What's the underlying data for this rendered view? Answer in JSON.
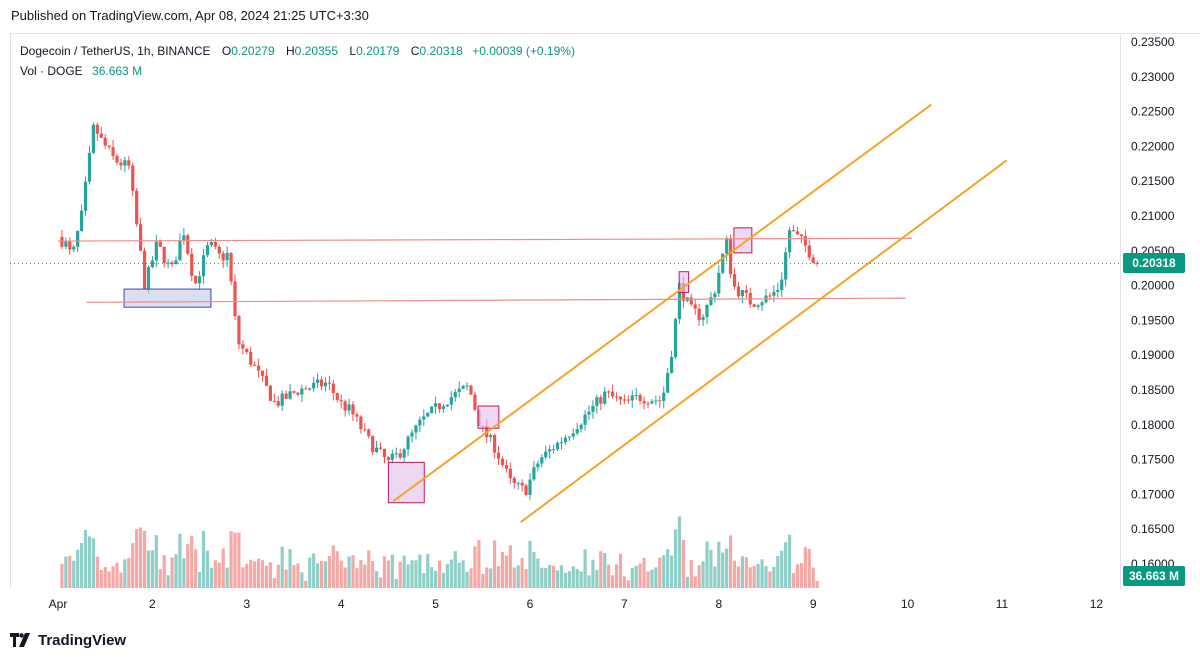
{
  "header": {
    "published": "Published on TradingView.com, Apr 08, 2024 21:25 UTC+3:30"
  },
  "legend": {
    "symbol": "Dogecoin / TetherUS, 1h, BINANCE",
    "open_label": "O",
    "open": "0.20279",
    "high_label": "H",
    "high": "0.20355",
    "low_label": "L",
    "low": "0.20179",
    "close_label": "C",
    "close": "0.20318",
    "change": "+0.00039 (+0.19%)",
    "vol_label": "Vol · DOGE",
    "vol": "36.663 M"
  },
  "price_tag": "0.20318",
  "vol_tag": "36.663 M",
  "footer": {
    "brand": "TradingView"
  },
  "colors": {
    "up": "#26a69a",
    "down": "#ef5350",
    "up_vol": "#8fcfc8",
    "down_vol": "#f5a8a6",
    "channel": "#f7a325",
    "level": "#f28b8b",
    "zone_pink": "#e1bee7",
    "zone_blue": "#c5cae9",
    "tag": "#089981"
  },
  "chart_data": {
    "type": "candlestick",
    "timeframe": "1h",
    "x_ticks": [
      "Apr",
      "2",
      "3",
      "4",
      "5",
      "6",
      "7",
      "8",
      "9",
      "10",
      "11",
      "12"
    ],
    "y_ticks": [
      "0.16000",
      "0.16500",
      "0.17000",
      "0.17500",
      "0.18000",
      "0.18500",
      "0.19000",
      "0.19500",
      "0.20000",
      "0.20500",
      "0.21000",
      "0.21500",
      "0.22000",
      "0.22500",
      "0.23000",
      "0.23500"
    ],
    "ylim": [
      0.1575,
      0.2365
    ],
    "last_price": 0.20318,
    "keypoints": [
      {
        "d": 0.0,
        "p": 0.207
      },
      {
        "d": 0.08,
        "p": 0.206
      },
      {
        "d": 0.15,
        "p": 0.204
      },
      {
        "d": 0.25,
        "p": 0.21
      },
      {
        "d": 0.38,
        "p": 0.223
      },
      {
        "d": 0.45,
        "p": 0.221
      },
      {
        "d": 0.6,
        "p": 0.218
      },
      {
        "d": 0.75,
        "p": 0.217
      },
      {
        "d": 0.85,
        "p": 0.207
      },
      {
        "d": 0.92,
        "p": 0.2
      },
      {
        "d": 1.05,
        "p": 0.206
      },
      {
        "d": 1.2,
        "p": 0.202
      },
      {
        "d": 1.33,
        "p": 0.208
      },
      {
        "d": 1.45,
        "p": 0.2
      },
      {
        "d": 1.6,
        "p": 0.206
      },
      {
        "d": 1.72,
        "p": 0.204
      },
      {
        "d": 1.8,
        "p": 0.2045
      },
      {
        "d": 1.9,
        "p": 0.192
      },
      {
        "d": 2.05,
        "p": 0.189
      },
      {
        "d": 2.3,
        "p": 0.183
      },
      {
        "d": 2.55,
        "p": 0.185
      },
      {
        "d": 2.85,
        "p": 0.186
      },
      {
        "d": 3.0,
        "p": 0.183
      },
      {
        "d": 3.1,
        "p": 0.182
      },
      {
        "d": 3.3,
        "p": 0.1775
      },
      {
        "d": 3.5,
        "p": 0.1745
      },
      {
        "d": 3.62,
        "p": 0.176
      },
      {
        "d": 3.85,
        "p": 0.1805
      },
      {
        "d": 4.1,
        "p": 0.1835
      },
      {
        "d": 4.35,
        "p": 0.1855
      },
      {
        "d": 4.48,
        "p": 0.1795
      },
      {
        "d": 4.62,
        "p": 0.177
      },
      {
        "d": 4.8,
        "p": 0.1715
      },
      {
        "d": 4.95,
        "p": 0.1705
      },
      {
        "d": 5.1,
        "p": 0.175
      },
      {
        "d": 5.35,
        "p": 0.178
      },
      {
        "d": 5.6,
        "p": 0.1815
      },
      {
        "d": 5.8,
        "p": 0.1845
      },
      {
        "d": 6.0,
        "p": 0.183
      },
      {
        "d": 6.15,
        "p": 0.184
      },
      {
        "d": 6.4,
        "p": 0.1835
      },
      {
        "d": 6.52,
        "p": 0.192
      },
      {
        "d": 6.58,
        "p": 0.2
      },
      {
        "d": 6.7,
        "p": 0.1965
      },
      {
        "d": 6.82,
        "p": 0.1955
      },
      {
        "d": 6.95,
        "p": 0.199
      },
      {
        "d": 7.08,
        "p": 0.2065
      },
      {
        "d": 7.15,
        "p": 0.2
      },
      {
        "d": 7.35,
        "p": 0.1975
      },
      {
        "d": 7.55,
        "p": 0.1985
      },
      {
        "d": 7.65,
        "p": 0.2
      },
      {
        "d": 7.75,
        "p": 0.208
      },
      {
        "d": 7.9,
        "p": 0.206
      },
      {
        "d": 8.0,
        "p": 0.204
      },
      {
        "d": 8.05,
        "p": 0.2032
      }
    ],
    "channel_lines": [
      {
        "p1": {
          "d": 3.55,
          "p": 0.169
        },
        "p2": {
          "d": 9.25,
          "p": 0.226
        }
      },
      {
        "p1": {
          "d": 4.9,
          "p": 0.166
        },
        "p2": {
          "d": 10.05,
          "p": 0.218
        }
      }
    ],
    "horizontal_levels": [
      {
        "from": {
          "d": 0.0,
          "p": 0.2064
        },
        "to": {
          "d": 9.05,
          "p": 0.2068
        }
      },
      {
        "from": {
          "d": 0.3,
          "p": 0.1976
        },
        "to": {
          "d": 8.98,
          "p": 0.1982
        }
      }
    ],
    "zones": [
      {
        "kind": "blue",
        "d1": 0.7,
        "d2": 1.62,
        "p1": 0.1995,
        "p2": 0.1969
      },
      {
        "kind": "pink",
        "d1": 3.5,
        "d2": 3.88,
        "p1": 0.1746,
        "p2": 0.1688
      },
      {
        "kind": "pink",
        "d1": 4.45,
        "d2": 4.67,
        "p1": 0.1827,
        "p2": 0.1795
      },
      {
        "kind": "pink",
        "d1": 6.58,
        "d2": 6.68,
        "p1": 0.202,
        "p2": 0.199
      },
      {
        "kind": "pink",
        "d1": 7.16,
        "d2": 7.35,
        "p1": 0.2083,
        "p2": 0.2047
      }
    ]
  }
}
